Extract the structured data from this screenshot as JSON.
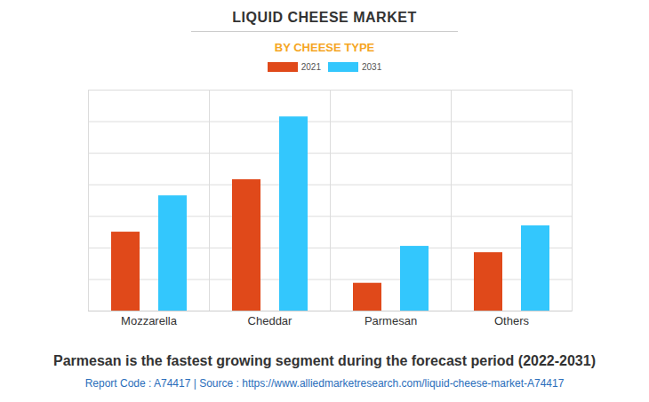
{
  "chart_data": {
    "type": "bar",
    "title": "LIQUID CHEESE MARKET",
    "subtitle": "BY CHEESE TYPE",
    "categories": [
      "Mozzarella",
      "Cheddar",
      "Parmesan",
      "Others"
    ],
    "series": [
      {
        "name": "2021",
        "color": "#e0491a",
        "values": [
          2.5,
          4.16,
          0.88,
          1.85
        ]
      },
      {
        "name": "2031",
        "color": "#33c7fd",
        "values": [
          3.65,
          6.15,
          2.05,
          2.7
        ]
      }
    ],
    "ylim": [
      0,
      7
    ],
    "yticks": [
      0,
      1,
      2,
      3,
      4,
      5,
      6,
      7
    ],
    "grid": true,
    "tick_labels": "x",
    "legend": "top",
    "caption": "Parmesan is the fastest growing segment during the forecast period (2022-2031)",
    "source": "Report Code : A74417  |  Source : https://www.alliedmarketresearch.com/liquid-cheese-market-A74417"
  }
}
